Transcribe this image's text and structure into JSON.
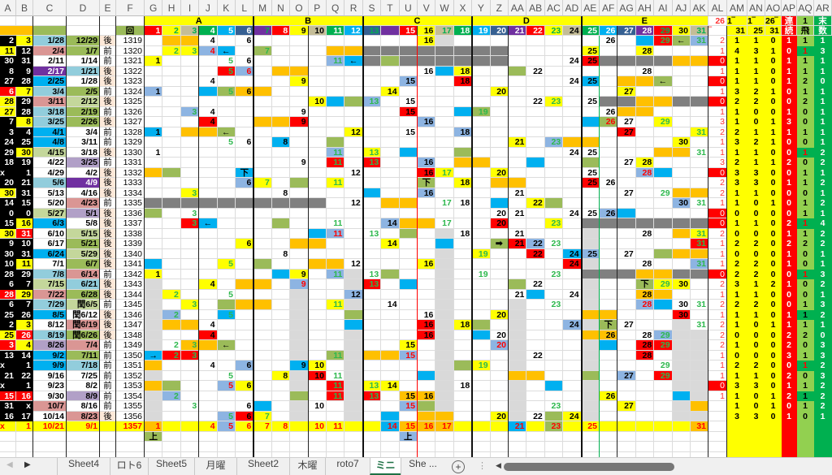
{
  "palette": {
    "k": "#000000",
    "y": "#ffff00",
    "r": "#ff0000",
    "o": "#ffc000",
    "b": "#8db4e2",
    "c": "#00b0f0",
    "g": "#9bbb59",
    "d": "#808080",
    "l": "#d9d9d9",
    "s": "#92cddc",
    "p": "#da9694",
    "u": "#7030a0",
    "v": "#b1a0c7",
    "m": "#c4d79b",
    "w": "#ffffff",
    "peach": "#fde9d9",
    "aq": "#92d050",
    "ar": "#00b050",
    "aqh": "#00b050"
  },
  "header": {
    "f_label": "回",
    "groups": [
      "A",
      "B",
      "C",
      "D",
      "E"
    ],
    "al_top": "26",
    "al_sub": "‾",
    "right_top": [
      "1‾",
      "1‾",
      "26‾",
      "連",
      "1",
      "末"
    ],
    "right_sub": [
      "31",
      "25",
      "31",
      "続",
      "飛",
      "数"
    ],
    "numbers": [
      {
        "n": "1",
        "bg": "#ff0000",
        "fg": "#ffffff"
      },
      {
        "n": "2",
        "bg": "#ffff00",
        "fg": "#00b050"
      },
      {
        "n": "3",
        "bg": "#c4bd97",
        "fg": "#00b050"
      },
      {
        "n": "4",
        "bg": "#00b050",
        "fg": "#ffffff"
      },
      {
        "n": "5",
        "bg": "#00b0f0",
        "fg": "#ffffff"
      },
      {
        "n": "6",
        "bg": "#366092",
        "fg": "#ffffff"
      },
      {
        "n": "7",
        "bg": "#7030a0",
        "fg": "#00b050"
      },
      {
        "n": "8",
        "bg": "#ff0000",
        "fg": "#ffffff"
      },
      {
        "n": "9",
        "bg": "#ffff00",
        "fg": "#000000"
      },
      {
        "n": "10",
        "bg": "#c4bd97",
        "fg": "#000000"
      },
      {
        "n": "11",
        "bg": "#00b050",
        "fg": "#ffffff"
      },
      {
        "n": "12",
        "bg": "#00b0f0",
        "fg": "#ffffff"
      },
      {
        "n": "13",
        "bg": "#366092",
        "fg": "#00b050"
      },
      {
        "n": "14",
        "bg": "#7030a0",
        "fg": "#7030a0"
      },
      {
        "n": "15",
        "bg": "#ff0000",
        "fg": "#ffffff"
      },
      {
        "n": "16",
        "bg": "#ffff00",
        "fg": "#000000"
      },
      {
        "n": "17",
        "bg": "#c4bd97",
        "fg": "#00b050"
      },
      {
        "n": "18",
        "bg": "#00b050",
        "fg": "#ffffff"
      },
      {
        "n": "19",
        "bg": "#00b0f0",
        "fg": "#ffffff"
      },
      {
        "n": "20",
        "bg": "#366092",
        "fg": "#ffffff"
      },
      {
        "n": "21",
        "bg": "#7030a0",
        "fg": "#ffffff"
      },
      {
        "n": "22",
        "bg": "#ff0000",
        "fg": "#ffffff"
      },
      {
        "n": "23",
        "bg": "#ffff00",
        "fg": "#00b050"
      },
      {
        "n": "24",
        "bg": "#c4bd97",
        "fg": "#000000"
      },
      {
        "n": "25",
        "bg": "#00b050",
        "fg": "#ffffff"
      },
      {
        "n": "26",
        "bg": "#00b0f0",
        "fg": "#ffffff"
      },
      {
        "n": "27",
        "bg": "#366092",
        "fg": "#ffffff"
      },
      {
        "n": "28",
        "bg": "#7030a0",
        "fg": "#ffffff"
      },
      {
        "n": "29",
        "bg": "#ff0000",
        "fg": "#00b050"
      },
      {
        "n": "30",
        "bg": "#ffff00",
        "fg": "#000000"
      },
      {
        "n": "31",
        "bg": "#c4bd97",
        "fg": "#00b050"
      }
    ]
  },
  "light_gray_runs": [
    [
      "G",
      "1343",
      "1356"
    ],
    [
      "O",
      "1344",
      "1356"
    ],
    [
      "R",
      "1342",
      "1356"
    ],
    [
      "W",
      "1340",
      "1355"
    ],
    [
      "AA",
      "1345",
      "1356"
    ],
    [
      "AE",
      "1338",
      "1356"
    ],
    [
      "AJ",
      "1347",
      "1356"
    ],
    [
      "AK",
      "1348",
      "1356"
    ]
  ],
  "rows": [
    {
      "f": "1319",
      "a": "k:2",
      "b": "y:3",
      "c": "s:1/28",
      "d": "g:12/29",
      "e": "後",
      "cells": {
        "H-I": "o",
        "J": ":4",
        "L": ":6",
        "V": "y:16",
        "W": "l",
        "AF": ":26",
        "AH": "c",
        "AI": "r:29",
        "AJ": "g:←",
        "AK": "b:31"
      },
      "al": "2",
      "st": "1 1 0 1 1 1"
    },
    {
      "f": "1320",
      "a": "y:11",
      "b": "k:12",
      "c": "p:2/4",
      "d": "g:1/7",
      "e": "前",
      "cells": {
        "H": "y:2",
        "I": "y:3",
        "J": "b:!4",
        "K": "c:←",
        "M": "g:7",
        "Q-R": "o",
        "S-Z": "d",
        "AE": "y:25",
        "AH": "y:28"
      },
      "al": "1",
      "st": "4 3 1 0 !1h 3"
    },
    {
      "f": "1321",
      "a": "k:30",
      "b": "k:31",
      "c": "w:2/11",
      "d": "w:1/14",
      "e": "前",
      "cells": {
        "G": "y:1",
        "K": ":5",
        "L": ":6",
        "Q": "b:11",
        "R": "c:←",
        "S": "d",
        "T": "g",
        "U-Z": "d",
        "AD": ":24",
        "AE": "r:25",
        "AF-AI": "d",
        "AJ-AK": "o"
      },
      "al": "0",
      "st": "1 1 0 1 1 1"
    },
    {
      "f": "1322",
      "a": "k:8",
      "b": "k:9",
      "c": "u:2/17",
      "d": "s:1/21",
      "e": "後",
      "cells": {
        "K": "r:5",
        "L": "b:!6",
        "N-O": "o",
        "V": ":16",
        "W": "c",
        "X": "y:18",
        "AA": "g",
        "AB": ":22",
        "AH": ":28"
      },
      "al": "1",
      "st": "1 1 0 1 1 1"
    },
    {
      "f": "1323",
      "a": "k:27",
      "b": "k:28",
      "c": "c:2/25",
      "d": "w:1/28",
      "e": "後",
      "cells": {
        "J": ":4",
        "O": "y:9",
        "U": "b:15",
        "X": "r:18",
        "AD": ":24",
        "AE": "c:25",
        "AG-AH": "o",
        "AI": "g:←"
      },
      "al": "0",
      "st": "1 1 0 1 2 0"
    },
    {
      "f": "1324",
      "a": "r:6",
      "b": "y:7",
      "c": "s:3/4",
      "d": "g:2/5",
      "e": "前",
      "cells": {
        "G": "b:1",
        "J": "c",
        "K": "g:5",
        "L": "o:6",
        "M": "o",
        "T": "y:14",
        "Z": "y:20",
        "AG": "y:27"
      },
      "al": "1",
      "st": "3 2 1 0 1 1"
    },
    {
      "f": "1325",
      "a": "y:28",
      "b": "k:29",
      "c": "p:3/11",
      "d": "m:2/12",
      "e": "後",
      "cells": {
        "P": "y:10",
        "Q": "c",
        "R": "g",
        "S": "b:13",
        "U": ":15",
        "AB": ":22",
        "AC": "y:23",
        "AE": ":25",
        "AF-AG": "d",
        "AH-AI": "o",
        "AJ-AK": "d"
      },
      "al": "0",
      "st": "2 2 0 0 2 1"
    },
    {
      "f": "1326",
      "a": "y:27",
      "b": "k:28",
      "c": "s:3/18",
      "d": "g:2/19",
      "e": "前",
      "cells": {
        "I": "b:3",
        "J": ":4",
        "O": ":9",
        "U": "r:15",
        "X": "c",
        "Y": "g:19",
        "AF": ":26",
        "AG-AH": "o"
      },
      "al": "1",
      "st": "1 0 0 1 0 1"
    },
    {
      "f": "1327",
      "a": "k:7",
      "b": "y:8",
      "c": "s:3/25",
      "d": "g:2/26",
      "e": "後",
      "cells": {
        "J": "r:4",
        "M-N": "o",
        "O": "r:9",
        "V": "b:16",
        "AE": "c",
        "AF": "g:!26",
        "AG": ":27",
        "AI": "y:29"
      },
      "al": "3",
      "st": "1 0 1 3 0 1"
    },
    {
      "f": "1328",
      "a": "k:3",
      "b": "k:4",
      "c": "c:4/1",
      "d": "w:3/4",
      "e": "前",
      "cells": {
        "G": "c:1",
        "I": "o",
        "J": "o",
        "K": "g:←",
        "R": "y:12",
        "U": ":15",
        "X": "b:18",
        "AG": "r:27",
        "AK": "y:31"
      },
      "al": "2",
      "st": "2 1 1 1 1 1"
    },
    {
      "f": "1329",
      "a": "k:24",
      "b": "k:25",
      "c": "c:4/8",
      "d": "w:3/11",
      "e": "前",
      "cells": {
        "K": ":5",
        "L": ":6",
        "N": "c:8",
        "Q": "g",
        "AA": "y:21",
        "AC": "b:23",
        "AD-AE": "o",
        "AJ": "y:30"
      },
      "al": "1",
      "st": "3 2 1 0 0 1"
    },
    {
      "f": "1330",
      "a": "k:29",
      "b": "y:30",
      "c": "m:4/15",
      "d": "w:3/18",
      "e": "後",
      "cells": {
        "G": ":1",
        "Q": "b:11",
        "S": "y:13",
        "U": "c",
        "X": "g",
        "AD": ":24",
        "AE": ":25",
        "AI-AJ": "o",
        "AK": ":31"
      },
      "al": "1",
      "st": "1 1 0 0 !1h 2"
    },
    {
      "f": "1331",
      "a": "k:18",
      "b": "k:19",
      "c": "w:4/22",
      "d": "v:3/25",
      "e": "前",
      "cells": {
        "O": ":9",
        "Q": "r:11",
        "S": "r:13",
        "V": "b:16",
        "X-Y": "o",
        "AB": "c",
        "AE": "g",
        "AG": ":27",
        "AH": "y:28"
      },
      "al": "3",
      "st": "2 1 1 2 0 2"
    },
    {
      "f": "1332",
      "a": "k:x",
      "b": "k:1",
      "c": "w:4/29",
      "d": "w:4/2",
      "e": "後",
      "cells": {
        "G": "o",
        "H": "g",
        "L": "c:下",
        "R": ":12",
        "V": "r:16",
        "W": "y:17",
        "Z": "y:20",
        "AE": ":25",
        "AH": "b:!28",
        "AI": "c"
      },
      "al": "0",
      "st": "3 3 0 0 1 1"
    },
    {
      "f": "1333",
      "a": "k:20",
      "b": "k:21",
      "c": "s:5/6",
      "d": "u:4/9",
      "e": "後",
      "cells": {
        "L": "b:6",
        "M": "y:7",
        "O": "g",
        "Q": "y:11",
        "V": "g:下",
        "X": "y:18",
        "Z-AA": "o",
        "AE": "r:25",
        "AF": ":26"
      },
      "al": "2",
      "st": "3 3 0 1 1 2"
    },
    {
      "f": "1334",
      "a": "y:30",
      "b": "k:31",
      "c": "w:5/13",
      "d": "w:4/16",
      "e": "後",
      "cells": {
        "I": "y:3",
        "N": ":8",
        "S": "c",
        "V": "b:16",
        "AA": ":21",
        "AG": ":27",
        "AI": ":29",
        "AJ-AK": "o"
      },
      "al": "2",
      "st": "1 1 0 0 0 1"
    },
    {
      "f": "1335",
      "a": "k:14",
      "b": "k:15",
      "c": "w:5/20",
      "d": "p:4/23",
      "e": "前",
      "cells": {
        "G-P": "d",
        "R": ":12",
        "T-U": "o",
        "W": ":17",
        "X": ":18",
        "Z": "c",
        "AB": "y:22",
        "AC": "g",
        "AJ": "b:30",
        "AK": ":31"
      },
      "al": "1",
      "st": "1 0 1 0 1 2"
    },
    {
      "f": "1336",
      "a": "k:0",
      "b": "k:0",
      "c": "m:5/27",
      "d": "v:5/1",
      "e": "後",
      "cells": {
        "G": "g",
        "I": ":3",
        "Z": ":20",
        "AA": ":21",
        "AD": ":24",
        "AE": ":25",
        "AF": "b:26",
        "AG": "c"
      },
      "al": "0",
      "st": "0 0 0 0 1 1"
    },
    {
      "f": "1337",
      "a": "k:15",
      "b": "y:16",
      "c": "c:6/3",
      "d": "w:5/8",
      "e": "後",
      "cells": {
        "I": "r:3",
        "J": "c:←",
        "N": "g",
        "Q": ":11",
        "T": "b:14",
        "U-V": "o",
        "W": ":17",
        "Z": "r:20",
        "AC": "y:23",
        "AE-AK": "d"
      },
      "al": "0",
      "st": "1 1 0 2 !1h 4"
    },
    {
      "f": "1338",
      "a": "y:30",
      "b": "r:31",
      "c": "w:6/10",
      "d": "m:5/15",
      "e": "後",
      "cells": {
        "P": "c",
        "Q": "b:!11",
        "S": ":13",
        "U": "g",
        "W": "l",
        "X": ":18",
        "AA": ":21",
        "AH": ":28",
        "AJ": "o",
        "AK": "y:31"
      },
      "al": "2",
      "st": "0 0 0 1 1 2"
    },
    {
      "f": "1339",
      "a": "k:9",
      "b": "k:10",
      "c": "w:6/17",
      "d": "g:5/21",
      "e": "後",
      "cells": {
        "L": "y:6",
        "O-P": "o",
        "T": "y:14",
        "W": "c",
        "Z": "g:➡",
        "AA": "r:21",
        "AB": "b:22",
        "AC": ":23",
        "AK": "r:31"
      },
      "al": "1",
      "st": "2 2 0 2 2 2"
    },
    {
      "f": "1340",
      "a": "k:30",
      "b": "k:31",
      "c": "c:6/24",
      "d": "m:5/29",
      "e": "後",
      "cells": {
        "N": ":8",
        "Y": "y:19",
        "AB": "r:22",
        "AD": "c:24",
        "AE": "b:25",
        "AG": ":27",
        "AI": "g",
        "AJ-AK": "o"
      },
      "al": "1",
      "st": "0 0 0 1 0 1"
    },
    {
      "f": "1341",
      "a": "k:10",
      "b": "y:11",
      "c": "w:7/1",
      "d": "g:6/7",
      "e": "後",
      "cells": {
        "G": "c",
        "K": "y:5",
        "M": "g",
        "P-Q": "o",
        "R": ":12",
        "V": "y:16",
        "AD": "r:24",
        "AH": ":28",
        "AK": "b:31"
      },
      "al": "1",
      "st": "2 2 0 1 0 1"
    },
    {
      "f": "1342",
      "a": "k:28",
      "b": "k:29",
      "c": "s:7/8",
      "d": "p:6/14",
      "e": "前",
      "cells": {
        "G": "y:1",
        "N": "c",
        "O": "y:9",
        "Q": "b:11",
        "S": ":13",
        "T": "g",
        "Y": ":19",
        "AC": ":23",
        "AE-AG": "d",
        "AH-AI": "o",
        "AJ-AK": "d"
      },
      "al": "0",
      "st": "2 2 0 0 !1h 3"
    },
    {
      "f": "1343",
      "a": "k:6",
      "b": "k:7",
      "c": "m:7/15",
      "d": "s:6/21",
      "e": "後",
      "cells": {
        "J": "y:4",
        "L": "o",
        "M": "o",
        "O": "b:!9",
        "S": "r:13",
        "U": "c",
        "AA": "g",
        "AB": ":22",
        "AH": "g:下",
        "AI": "y:29",
        "AJ": "y:30"
      },
      "al": "2",
      "st": "3 1 2 1 0 2"
    },
    {
      "f": "1344",
      "a": "r:28",
      "b": "y:29",
      "c": "p:7/22",
      "d": "g:6/28",
      "e": "後",
      "cells": {
        "H": "y:2",
        "K": ":5",
        "R": "b:12",
        "AA": ":21",
        "AB": "c",
        "AD": ":24",
        "AH": "o:28",
        "AI": "o"
      },
      "al": "1",
      "st": "1 1 0 0 0 1"
    },
    {
      "f": "1345",
      "a": "k:6",
      "b": "k:7",
      "c": "s:7/29",
      "d": "m:閏6/5",
      "e": "前",
      "cells": {
        "I": "y:3",
        "K": "g",
        "L-M": "o",
        "Q": "y:11",
        "T": ":14",
        "AC": ":23",
        "AH": "b:!28",
        "AI": "c",
        "AJ": ":30",
        "AK": ":31"
      },
      "al": "2",
      "st": "2 2 0 0 1 3"
    },
    {
      "f": "1346",
      "a": "k:25",
      "b": "k:26",
      "c": "c:8/5",
      "d": "w:閏6/12",
      "e": "後",
      "cells": {
        "H": "b:2",
        "K": "c:5",
        "R": "g",
        "V": ":16",
        "Z": "y:20",
        "AE-AF": "o",
        "AJ": "r:30"
      },
      "al": "1",
      "st": "1 1 0 1 1h 2"
    },
    {
      "f": "1347",
      "a": "k:2",
      "b": "y:3",
      "c": "w:8/12",
      "d": "p:閏6/19",
      "e": "後",
      "cells": {
        "H-I": "o",
        "J": ":4",
        "R": "c",
        "V": "r:16",
        "X": "y:18",
        "Y": "g",
        "AD": "b:24",
        "AF": "g:下",
        "AG": ":27",
        "AK": ":31"
      },
      "al": "2",
      "st": "1 0 1 1 1 1"
    },
    {
      "f": "1348",
      "a": "y:25",
      "b": "r:26",
      "c": "s:8/19",
      "d": "g:閏6/26",
      "e": "後",
      "cells": {
        "J": "r:4",
        "V": "r:16",
        "Y": "c",
        "Z": ":20",
        "AE": "o",
        "AF": "o:26",
        "AH": ":28",
        "AI": "b:29"
      },
      "al": "2",
      "st": "0 0 0 2 2 0"
    },
    {
      "f": "1349",
      "a": "r:3",
      "b": "y:4",
      "c": "v:8/26",
      "d": "p:7/4",
      "e": "前",
      "cells": {
        "H": ":2",
        "I": "o:3",
        "J": "o",
        "K": "g:←",
        "U": "y:15",
        "Z": "b:!20",
        "AF": "c",
        "AH": "r:28",
        "AI": "r:29"
      },
      "al": "2",
      "st": "1 0 0 2 0 3"
    },
    {
      "f": "1350",
      "a": "k:13",
      "b": "k:14",
      "c": "c:9/2",
      "d": "g:7/11",
      "e": "前",
      "cells": {
        "G": "c:→",
        "H": "r:2",
        "I": "r:3",
        "Q": "g:11",
        "S-T": "o",
        "U": "b:!15",
        "AB": ":22",
        "AH": "r:28"
      },
      "al": "1",
      "st": "0 0 0 3 1 3"
    },
    {
      "f": "1351",
      "a": "k:x",
      "b": "k:1",
      "c": "c:9/9",
      "d": "s:7/18",
      "e": "前",
      "cells": {
        "G": "o",
        "J": ":4",
        "L": "b:6",
        "O": "c:9",
        "P": "y:10",
        "X": "g",
        "Y": "y:19",
        "AI": ":29"
      },
      "al": "1",
      "st": "2 2 0 0 !1h 2"
    },
    {
      "f": "1352",
      "a": "k:21",
      "b": "k:22",
      "c": "w:9/16",
      "d": "w:7/25",
      "e": "前",
      "cells": {
        "K": ":5",
        "N": "y:8",
        "P": "r:10",
        "Q": ":11",
        "V": "c",
        "AA-AB": "o",
        "AE": "g",
        "AG": "b:27",
        "AI": "r:29"
      },
      "al": "1",
      "st": "1 1 0 2 0 3"
    },
    {
      "f": "1353",
      "a": "k:x",
      "b": "k:1",
      "c": "w:9/23",
      "d": "w:8/2",
      "e": "前",
      "cells": {
        "G": "o",
        "H": "g",
        "K": "b:!5",
        "L": "y:6",
        "Q": "r:11",
        "S": "y:13",
        "T": "y:14",
        "X": ":18",
        "AC": "c"
      },
      "al": "0",
      "st": "3 3 0 1 1 2"
    },
    {
      "f": "1354",
      "a": "r:15",
      "b": "r:16",
      "c": "w:9/30",
      "d": "v:8/9",
      "e": "前",
      "cells": {
        "H": "b:2",
        "O": "g",
        "Q": "r:11",
        "S": "r:13",
        "U": "o:15",
        "V": "o:16",
        "AF": "y:26",
        "AJ": "c"
      },
      "al": "1",
      "st": "1 0 1 2 1h 2"
    },
    {
      "f": "1355",
      "a": "k:31",
      "b": "k:x",
      "c": "p:10/7",
      "d": "w:8/16",
      "e": "前",
      "cells": {
        "I": ":3",
        "L": ":6",
        "M": "c",
        "P": ":10",
        "U": "b:!15",
        "V": "g",
        "AC": ":23",
        "AG": "y:27",
        "AK": "o"
      },
      "al": "",
      "st": "1 0 1 0 1 2"
    },
    {
      "f": "1356",
      "a": "k:16",
      "b": "k:17",
      "c": "w:10/14",
      "d": "p:8/23",
      "e": "後",
      "cells": {
        "K": "b:5",
        "L": "r:6",
        "M": "y:7",
        "T": "c",
        "V-W": "o",
        "Z": "y:20",
        "AB": ":22",
        "AC": "g",
        "AD": "y:24"
      },
      "al": "",
      "st": "3 3 0 1 0 1"
    },
    {
      "f": "1357",
      "a": "y:!x",
      "b": "y:!1",
      "c": "y:!10/21",
      "d": "y:!9/1",
      "e": "",
      "hl": "y",
      "cells": {
        "G": "o:!1",
        "J": ":!4",
        "K": "b:!5",
        "L": ":!6",
        "M": ":!7",
        "N": ":!8",
        "P": ":!10",
        "Q": ":!11",
        "T": "c:!14",
        "U": "o:!15",
        "V": "o:!16",
        "W": "o:!17",
        "AA": "c:!21",
        "AC": "g:!23",
        "AE": ":!25",
        "AK": "o:!31"
      },
      "al": "",
      "st": ""
    },
    {
      "f": "",
      "a": "",
      "b": "",
      "c": "",
      "d": "",
      "e": "",
      "cells": {
        "G": "g:上",
        "U": "b:上"
      },
      "al": "",
      "st": ""
    }
  ],
  "tabs": {
    "items": [
      "Sheet4",
      "ロト6",
      "Sheet5",
      "月曜",
      "Sheet2",
      "木曜",
      "roto7",
      "ミニ",
      "She ..."
    ],
    "active": "ミニ",
    "add_label": "+",
    "prev_label": "◀",
    "next_label": "▶",
    "more_label": "⋮"
  }
}
